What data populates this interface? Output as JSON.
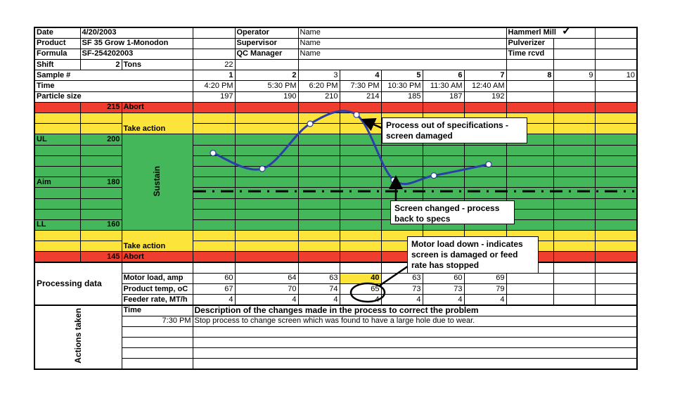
{
  "header": {
    "date_label": "Date",
    "date": "4/20/2003",
    "product_label": "Product",
    "product": "SF 35 Grow 1-Monodon",
    "formula_label": "Formula",
    "formula": "SF-254202003",
    "shift_label": "Shift",
    "shift": "2",
    "tons_label": "Tons",
    "tons": "22",
    "operator_label": "Operator",
    "operator": "Name",
    "supervisor_label": "Supervisor",
    "supervisor": "Name",
    "qc_label": "QC Manager",
    "qc": "Name",
    "mill_label": "Hammerl Mill",
    "mill_check": "✓",
    "pulverizer_label": "Pulverizer",
    "time_rcvd_label": "Time rcvd"
  },
  "samples": {
    "label": "Sample #",
    "numbers": [
      "1",
      "2",
      "3",
      "4",
      "5",
      "6",
      "7",
      "8",
      "9",
      "10"
    ],
    "time_label": "Time",
    "times": [
      "4:20 PM",
      "5:30 PM",
      "6:20 PM",
      "7:30 PM",
      "10:30 PM",
      "11:30 AM",
      "12:40 AM"
    ],
    "size_label": "Particle size",
    "sizes": [
      "197",
      "190",
      "210",
      "214",
      "185",
      "187",
      "192"
    ]
  },
  "bands": {
    "abort_high": "215",
    "abort_label": "Abort",
    "take_action": "Take action",
    "ul_label": "UL",
    "ul": "200",
    "aim_label": "Aim",
    "aim": "180",
    "ll_label": "LL",
    "ll": "160",
    "sustain": "Sustain",
    "abort_low": "145"
  },
  "processing": {
    "label": "Processing data",
    "rows": [
      {
        "label": "Motor load, amp",
        "values": [
          "60",
          "64",
          "63",
          "40",
          "63",
          "60",
          "69"
        ]
      },
      {
        "label": "Product temp, oC",
        "values": [
          "67",
          "70",
          "74",
          "65",
          "73",
          "73",
          "79"
        ]
      },
      {
        "label": "Feeder rate, MT/h",
        "values": [
          "4",
          "4",
          "4",
          "4",
          "4",
          "4",
          "4"
        ]
      }
    ]
  },
  "actions": {
    "label": "Actions taken",
    "time_header": "Time",
    "desc_header": "Description of the changes made in the process to correct the problem",
    "entries": [
      {
        "time": "7:30 PM",
        "desc": "Stop process to change screen which was found to have a large hole due to wear."
      }
    ]
  },
  "annotations": [
    "Process out of specifications -\nscreen  damaged",
    "Screen changed - process\nback to specs",
    "Motor load down - indicates\nscreen is damaged or feed\nrate has stopped"
  ],
  "colors": {
    "abort": "#ef3e2f",
    "take_action": "#fde43a",
    "sustain": "#44b75a",
    "line": "#2b3fa8",
    "highlight": "#fde43a"
  },
  "chart_data": {
    "type": "line",
    "x": [
      1,
      2,
      3,
      4,
      5,
      6,
      7
    ],
    "values": [
      197,
      190,
      210,
      214,
      185,
      187,
      192
    ],
    "reference_lines": {
      "abort_high": 215,
      "ul": 200,
      "aim": 180,
      "ll": 160,
      "abort_low": 145
    },
    "ylim": [
      145,
      215
    ],
    "smooth": true,
    "grid": true
  }
}
